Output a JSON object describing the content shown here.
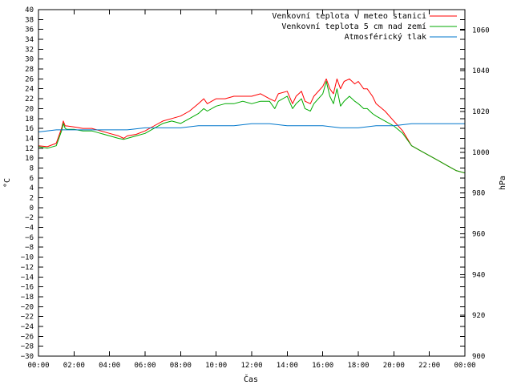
{
  "chart_data": {
    "type": "line",
    "title": "",
    "xlabel": "Čas",
    "ylabel": "°C",
    "y2label": "hPa",
    "xlim": [
      0,
      24
    ],
    "ylim": [
      -30,
      40
    ],
    "y2lim": [
      900,
      1070
    ],
    "x_ticks": [
      "00:00",
      "02:00",
      "04:00",
      "06:00",
      "08:00",
      "10:00",
      "12:00",
      "14:00",
      "16:00",
      "18:00",
      "20:00",
      "22:00",
      "00:00"
    ],
    "y_ticks": [
      -30,
      -28,
      -26,
      -24,
      -22,
      -20,
      -18,
      -16,
      -14,
      -12,
      -10,
      -8,
      -6,
      -4,
      -2,
      0,
      2,
      4,
      6,
      8,
      10,
      12,
      14,
      16,
      18,
      20,
      22,
      24,
      26,
      28,
      30,
      32,
      34,
      36,
      38,
      40
    ],
    "y2_ticks": [
      900,
      920,
      940,
      960,
      980,
      1000,
      1020,
      1040,
      1060
    ],
    "legend_position": "top-right",
    "grid": false,
    "series": [
      {
        "name": "Venkovní teplota v meteo stanici",
        "color": "#ff0000",
        "axis": "left",
        "x": [
          0,
          0.5,
          1.0,
          1.3,
          1.4,
          1.5,
          1.6,
          2.0,
          2.5,
          3.0,
          3.5,
          4.0,
          4.5,
          4.8,
          5.0,
          5.5,
          6.0,
          6.5,
          7.0,
          7.5,
          8.0,
          8.5,
          9.0,
          9.3,
          9.5,
          10.0,
          10.5,
          11.0,
          11.5,
          12.0,
          12.5,
          13.0,
          13.3,
          13.5,
          14.0,
          14.3,
          14.5,
          14.8,
          15.0,
          15.3,
          15.5,
          16.0,
          16.2,
          16.4,
          16.6,
          16.8,
          17.0,
          17.2,
          17.5,
          17.8,
          18.0,
          18.3,
          18.5,
          18.8,
          19.0,
          19.5,
          20.0,
          20.5,
          21.0,
          21.5,
          22.0,
          22.5,
          23.0,
          23.5,
          24.0
        ],
        "y": [
          12.5,
          12.3,
          13.0,
          16.0,
          17.5,
          16.5,
          16.5,
          16.3,
          16.0,
          16.0,
          15.5,
          15.0,
          14.5,
          14.0,
          14.5,
          14.8,
          15.5,
          16.5,
          17.5,
          18.0,
          18.5,
          19.5,
          21.0,
          22.0,
          21.0,
          22.0,
          22.0,
          22.5,
          22.5,
          22.5,
          23.0,
          22.0,
          21.5,
          23.0,
          23.5,
          21.0,
          22.5,
          23.5,
          21.5,
          21.0,
          22.5,
          24.5,
          26.0,
          24.0,
          23.0,
          26.0,
          24.0,
          25.5,
          26.0,
          25.0,
          25.5,
          24.0,
          24.0,
          22.5,
          21.0,
          19.5,
          17.5,
          15.5,
          12.5,
          11.5,
          10.5,
          9.5,
          8.5,
          7.5,
          7.0
        ]
      },
      {
        "name": "Venkovní teplota 5 cm nad zemí",
        "color": "#00aa00",
        "axis": "left",
        "x": [
          0,
          0.5,
          1.0,
          1.3,
          1.4,
          1.5,
          1.6,
          2.0,
          2.5,
          3.0,
          3.5,
          4.0,
          4.5,
          4.8,
          5.0,
          5.5,
          6.0,
          6.5,
          7.0,
          7.5,
          8.0,
          8.5,
          9.0,
          9.3,
          9.5,
          10.0,
          10.5,
          11.0,
          11.5,
          12.0,
          12.5,
          13.0,
          13.3,
          13.5,
          14.0,
          14.3,
          14.5,
          14.8,
          15.0,
          15.3,
          15.5,
          16.0,
          16.2,
          16.4,
          16.6,
          16.8,
          17.0,
          17.2,
          17.5,
          17.8,
          18.0,
          18.3,
          18.5,
          18.8,
          19.0,
          19.5,
          20.0,
          20.5,
          21.0,
          21.5,
          22.0,
          22.5,
          23.0,
          23.5,
          24.0
        ],
        "y": [
          12.3,
          12.0,
          12.5,
          15.5,
          17.0,
          16.0,
          15.8,
          15.8,
          15.5,
          15.5,
          15.0,
          14.5,
          14.0,
          13.8,
          14.0,
          14.5,
          15.0,
          16.0,
          17.0,
          17.5,
          17.0,
          18.0,
          19.0,
          20.0,
          19.5,
          20.5,
          21.0,
          21.0,
          21.5,
          21.0,
          21.5,
          21.5,
          20.0,
          21.5,
          22.5,
          20.0,
          21.0,
          22.0,
          20.0,
          19.5,
          21.0,
          23.0,
          25.5,
          22.5,
          21.0,
          24.0,
          20.5,
          21.5,
          22.5,
          21.5,
          21.0,
          20.0,
          20.0,
          19.0,
          18.5,
          17.5,
          16.5,
          15.0,
          12.5,
          11.5,
          10.5,
          9.5,
          8.5,
          7.5,
          7.0
        ]
      },
      {
        "name": "Atmosférický tlak",
        "color": "#0077cc",
        "axis": "right",
        "x": [
          0,
          1,
          2,
          3,
          4,
          5,
          6,
          7,
          8,
          9,
          10,
          11,
          12,
          13,
          14,
          15,
          16,
          17,
          18,
          19,
          20,
          21,
          22,
          23,
          24
        ],
        "y": [
          1010,
          1011,
          1011,
          1011,
          1011,
          1011,
          1012,
          1012,
          1012,
          1013,
          1013,
          1013,
          1014,
          1014,
          1013,
          1013,
          1013,
          1012,
          1012,
          1013,
          1013,
          1014,
          1014,
          1014,
          1014
        ]
      }
    ]
  }
}
